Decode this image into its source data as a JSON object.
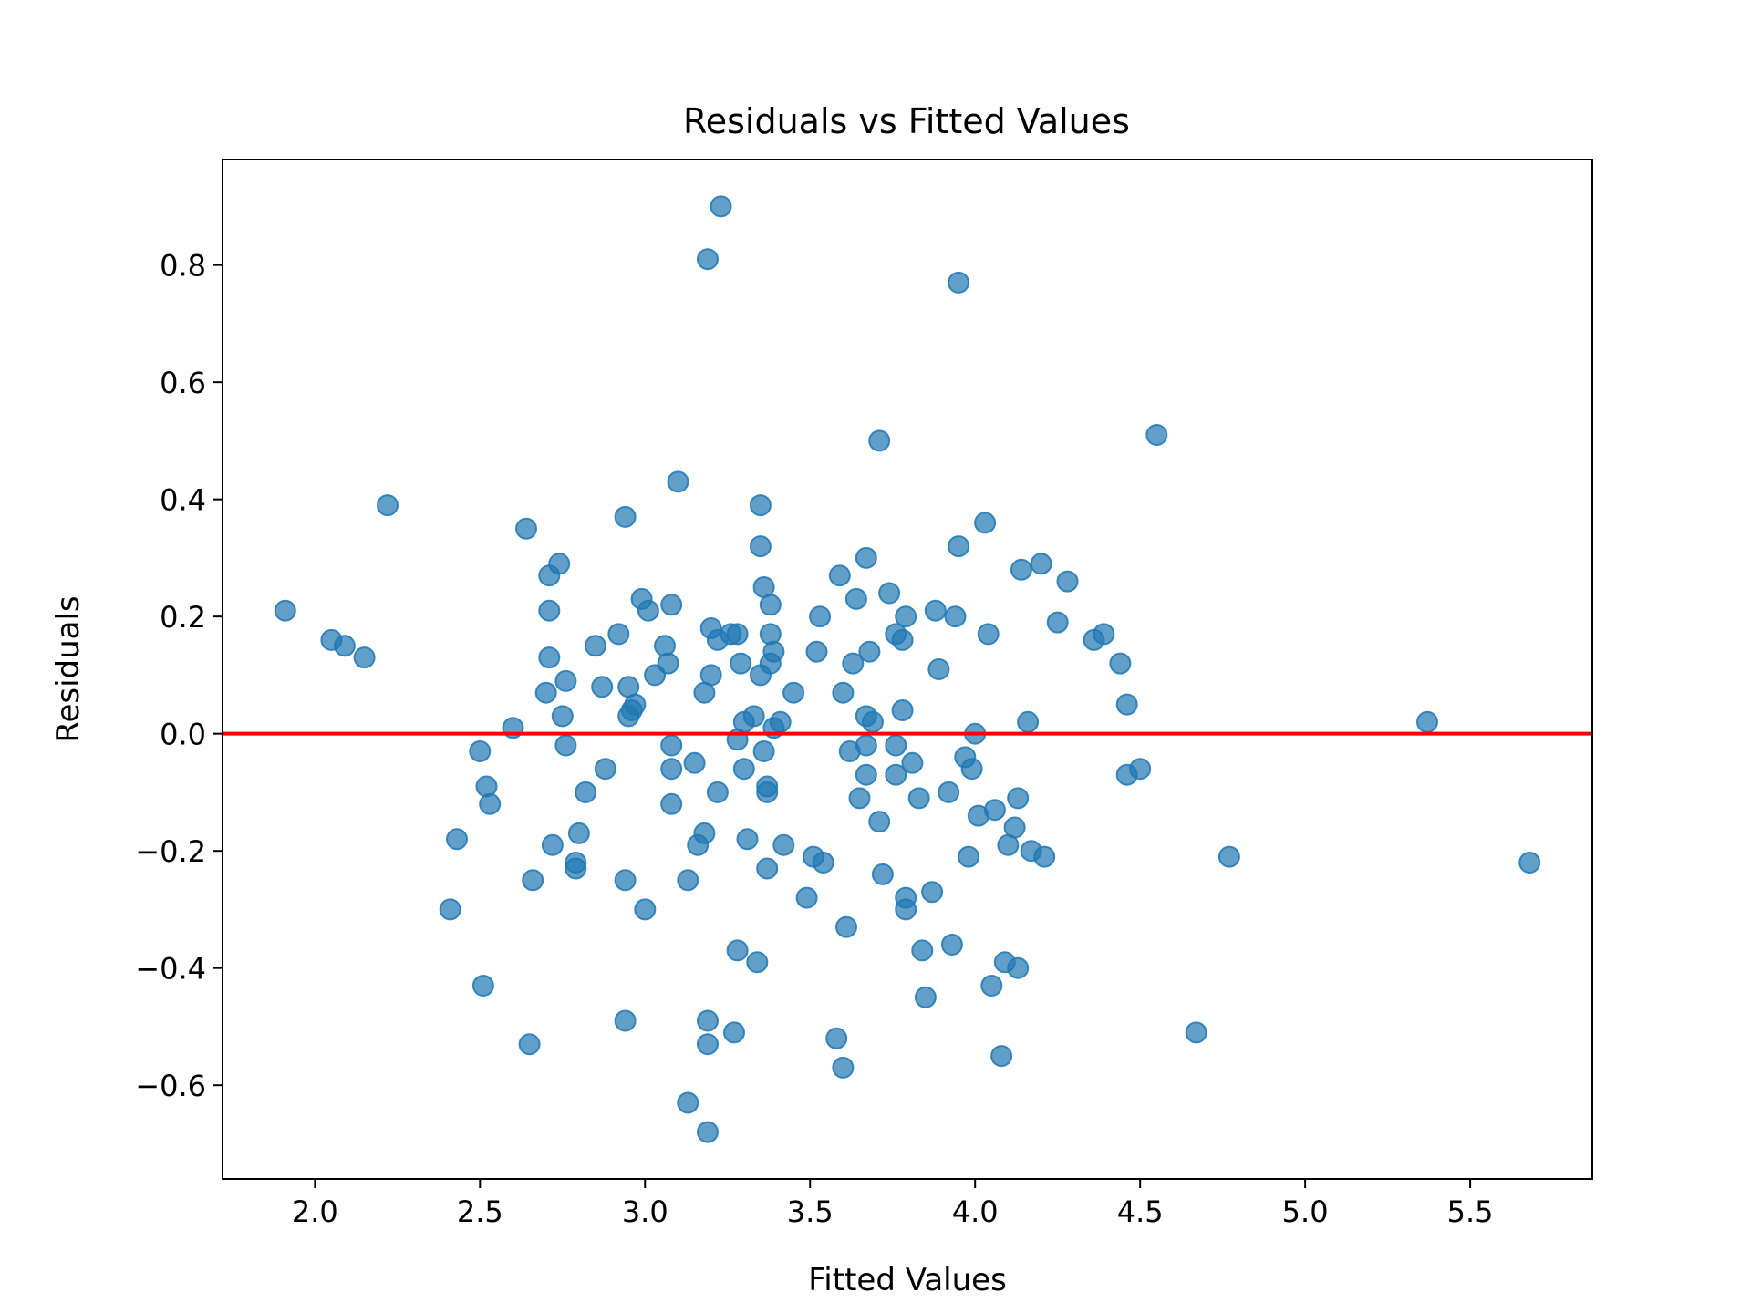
{
  "chart_data": {
    "type": "scatter",
    "title": "Residuals vs Fitted Values",
    "xlabel": "Fitted Values",
    "ylabel": "Residuals",
    "xlim": [
      1.72,
      5.87
    ],
    "ylim": [
      -0.76,
      0.98
    ],
    "xticks": [
      2.0,
      2.5,
      3.0,
      3.5,
      4.0,
      4.5,
      5.0,
      5.5
    ],
    "xtick_labels": [
      "2.0",
      "2.5",
      "3.0",
      "3.5",
      "4.0",
      "4.5",
      "5.0",
      "5.5"
    ],
    "yticks": [
      0.8,
      0.6,
      0.4,
      0.2,
      0.0,
      -0.2,
      -0.4,
      -0.6
    ],
    "ytick_labels": [
      "0.8",
      "0.6",
      "0.4",
      "0.2",
      "0.0",
      "−0.2",
      "−0.4",
      "−0.6"
    ],
    "grid": false,
    "point_color": "#1f77b4",
    "reference_line": {
      "y": 0.0,
      "color": "#ff0000"
    },
    "points": [
      {
        "x": 1.91,
        "y": 0.21
      },
      {
        "x": 2.05,
        "y": 0.16
      },
      {
        "x": 2.09,
        "y": 0.15
      },
      {
        "x": 2.15,
        "y": 0.13
      },
      {
        "x": 2.22,
        "y": 0.39
      },
      {
        "x": 2.41,
        "y": -0.3
      },
      {
        "x": 2.43,
        "y": -0.18
      },
      {
        "x": 2.5,
        "y": -0.03
      },
      {
        "x": 2.51,
        "y": -0.43
      },
      {
        "x": 2.52,
        "y": -0.09
      },
      {
        "x": 2.53,
        "y": -0.12
      },
      {
        "x": 2.6,
        "y": 0.01
      },
      {
        "x": 2.64,
        "y": 0.35
      },
      {
        "x": 2.65,
        "y": -0.53
      },
      {
        "x": 2.66,
        "y": -0.25
      },
      {
        "x": 2.7,
        "y": 0.07
      },
      {
        "x": 2.71,
        "y": 0.27
      },
      {
        "x": 2.71,
        "y": 0.21
      },
      {
        "x": 2.71,
        "y": 0.13
      },
      {
        "x": 2.72,
        "y": -0.19
      },
      {
        "x": 2.74,
        "y": 0.29
      },
      {
        "x": 2.75,
        "y": 0.03
      },
      {
        "x": 2.76,
        "y": 0.09
      },
      {
        "x": 2.76,
        "y": -0.02
      },
      {
        "x": 2.79,
        "y": -0.22
      },
      {
        "x": 2.79,
        "y": -0.23
      },
      {
        "x": 2.8,
        "y": -0.17
      },
      {
        "x": 2.82,
        "y": -0.1
      },
      {
        "x": 2.85,
        "y": 0.15
      },
      {
        "x": 2.87,
        "y": 0.08
      },
      {
        "x": 2.88,
        "y": -0.06
      },
      {
        "x": 2.92,
        "y": 0.17
      },
      {
        "x": 2.94,
        "y": 0.37
      },
      {
        "x": 2.94,
        "y": -0.25
      },
      {
        "x": 2.94,
        "y": -0.49
      },
      {
        "x": 2.95,
        "y": 0.08
      },
      {
        "x": 2.95,
        "y": 0.03
      },
      {
        "x": 2.96,
        "y": 0.04
      },
      {
        "x": 2.97,
        "y": 0.05
      },
      {
        "x": 2.99,
        "y": 0.23
      },
      {
        "x": 3.0,
        "y": -0.3
      },
      {
        "x": 3.01,
        "y": 0.21
      },
      {
        "x": 3.03,
        "y": 0.1
      },
      {
        "x": 3.06,
        "y": 0.15
      },
      {
        "x": 3.07,
        "y": 0.12
      },
      {
        "x": 3.08,
        "y": 0.22
      },
      {
        "x": 3.08,
        "y": -0.02
      },
      {
        "x": 3.08,
        "y": -0.06
      },
      {
        "x": 3.08,
        "y": -0.12
      },
      {
        "x": 3.1,
        "y": 0.43
      },
      {
        "x": 3.13,
        "y": -0.25
      },
      {
        "x": 3.13,
        "y": -0.63
      },
      {
        "x": 3.15,
        "y": -0.05
      },
      {
        "x": 3.16,
        "y": -0.19
      },
      {
        "x": 3.18,
        "y": -0.17
      },
      {
        "x": 3.18,
        "y": 0.07
      },
      {
        "x": 3.19,
        "y": 0.81
      },
      {
        "x": 3.19,
        "y": -0.49
      },
      {
        "x": 3.19,
        "y": -0.53
      },
      {
        "x": 3.19,
        "y": -0.68
      },
      {
        "x": 3.2,
        "y": 0.18
      },
      {
        "x": 3.2,
        "y": 0.1
      },
      {
        "x": 3.22,
        "y": 0.16
      },
      {
        "x": 3.22,
        "y": -0.1
      },
      {
        "x": 3.23,
        "y": 0.9
      },
      {
        "x": 3.26,
        "y": 0.17
      },
      {
        "x": 3.27,
        "y": -0.51
      },
      {
        "x": 3.28,
        "y": 0.17
      },
      {
        "x": 3.28,
        "y": -0.01
      },
      {
        "x": 3.28,
        "y": -0.37
      },
      {
        "x": 3.29,
        "y": 0.12
      },
      {
        "x": 3.3,
        "y": 0.02
      },
      {
        "x": 3.3,
        "y": -0.06
      },
      {
        "x": 3.31,
        "y": -0.18
      },
      {
        "x": 3.33,
        "y": 0.03
      },
      {
        "x": 3.34,
        "y": -0.39
      },
      {
        "x": 3.35,
        "y": 0.39
      },
      {
        "x": 3.35,
        "y": 0.32
      },
      {
        "x": 3.35,
        "y": 0.1
      },
      {
        "x": 3.36,
        "y": 0.25
      },
      {
        "x": 3.36,
        "y": -0.03
      },
      {
        "x": 3.37,
        "y": -0.09
      },
      {
        "x": 3.37,
        "y": -0.1
      },
      {
        "x": 3.37,
        "y": -0.23
      },
      {
        "x": 3.38,
        "y": 0.22
      },
      {
        "x": 3.38,
        "y": 0.17
      },
      {
        "x": 3.38,
        "y": 0.12
      },
      {
        "x": 3.39,
        "y": 0.14
      },
      {
        "x": 3.39,
        "y": 0.01
      },
      {
        "x": 3.41,
        "y": 0.02
      },
      {
        "x": 3.42,
        "y": -0.19
      },
      {
        "x": 3.45,
        "y": 0.07
      },
      {
        "x": 3.49,
        "y": -0.28
      },
      {
        "x": 3.51,
        "y": -0.21
      },
      {
        "x": 3.52,
        "y": 0.14
      },
      {
        "x": 3.53,
        "y": 0.2
      },
      {
        "x": 3.54,
        "y": -0.22
      },
      {
        "x": 3.58,
        "y": -0.52
      },
      {
        "x": 3.59,
        "y": 0.27
      },
      {
        "x": 3.6,
        "y": 0.07
      },
      {
        "x": 3.6,
        "y": -0.57
      },
      {
        "x": 3.61,
        "y": -0.33
      },
      {
        "x": 3.62,
        "y": -0.03
      },
      {
        "x": 3.63,
        "y": 0.12
      },
      {
        "x": 3.64,
        "y": 0.23
      },
      {
        "x": 3.65,
        "y": -0.11
      },
      {
        "x": 3.67,
        "y": 0.3
      },
      {
        "x": 3.67,
        "y": 0.03
      },
      {
        "x": 3.67,
        "y": -0.02
      },
      {
        "x": 3.67,
        "y": -0.07
      },
      {
        "x": 3.68,
        "y": 0.14
      },
      {
        "x": 3.69,
        "y": 0.02
      },
      {
        "x": 3.71,
        "y": 0.5
      },
      {
        "x": 3.71,
        "y": -0.15
      },
      {
        "x": 3.72,
        "y": -0.24
      },
      {
        "x": 3.74,
        "y": 0.24
      },
      {
        "x": 3.76,
        "y": 0.17
      },
      {
        "x": 3.76,
        "y": -0.02
      },
      {
        "x": 3.76,
        "y": -0.07
      },
      {
        "x": 3.78,
        "y": 0.16
      },
      {
        "x": 3.78,
        "y": 0.04
      },
      {
        "x": 3.79,
        "y": 0.2
      },
      {
        "x": 3.79,
        "y": -0.28
      },
      {
        "x": 3.79,
        "y": -0.3
      },
      {
        "x": 3.81,
        "y": -0.05
      },
      {
        "x": 3.83,
        "y": -0.11
      },
      {
        "x": 3.84,
        "y": -0.37
      },
      {
        "x": 3.85,
        "y": -0.45
      },
      {
        "x": 3.87,
        "y": -0.27
      },
      {
        "x": 3.88,
        "y": 0.21
      },
      {
        "x": 3.89,
        "y": 0.11
      },
      {
        "x": 3.92,
        "y": -0.1
      },
      {
        "x": 3.93,
        "y": -0.36
      },
      {
        "x": 3.94,
        "y": 0.2
      },
      {
        "x": 3.95,
        "y": 0.77
      },
      {
        "x": 3.95,
        "y": 0.32
      },
      {
        "x": 3.97,
        "y": -0.04
      },
      {
        "x": 3.98,
        "y": -0.21
      },
      {
        "x": 3.99,
        "y": -0.06
      },
      {
        "x": 4.0,
        "y": 0.0
      },
      {
        "x": 4.01,
        "y": -0.14
      },
      {
        "x": 4.03,
        "y": 0.36
      },
      {
        "x": 4.04,
        "y": 0.17
      },
      {
        "x": 4.05,
        "y": -0.43
      },
      {
        "x": 4.06,
        "y": -0.13
      },
      {
        "x": 4.08,
        "y": -0.55
      },
      {
        "x": 4.09,
        "y": -0.39
      },
      {
        "x": 4.1,
        "y": -0.19
      },
      {
        "x": 4.12,
        "y": -0.16
      },
      {
        "x": 4.13,
        "y": -0.11
      },
      {
        "x": 4.13,
        "y": -0.4
      },
      {
        "x": 4.14,
        "y": 0.28
      },
      {
        "x": 4.16,
        "y": 0.02
      },
      {
        "x": 4.17,
        "y": -0.2
      },
      {
        "x": 4.2,
        "y": 0.29
      },
      {
        "x": 4.21,
        "y": -0.21
      },
      {
        "x": 4.25,
        "y": 0.19
      },
      {
        "x": 4.28,
        "y": 0.26
      },
      {
        "x": 4.36,
        "y": 0.16
      },
      {
        "x": 4.39,
        "y": 0.17
      },
      {
        "x": 4.44,
        "y": 0.12
      },
      {
        "x": 4.46,
        "y": 0.05
      },
      {
        "x": 4.46,
        "y": -0.07
      },
      {
        "x": 4.5,
        "y": -0.06
      },
      {
        "x": 4.55,
        "y": 0.51
      },
      {
        "x": 4.67,
        "y": -0.51
      },
      {
        "x": 4.77,
        "y": -0.21
      },
      {
        "x": 5.37,
        "y": 0.02
      },
      {
        "x": 5.68,
        "y": -0.22
      }
    ]
  }
}
